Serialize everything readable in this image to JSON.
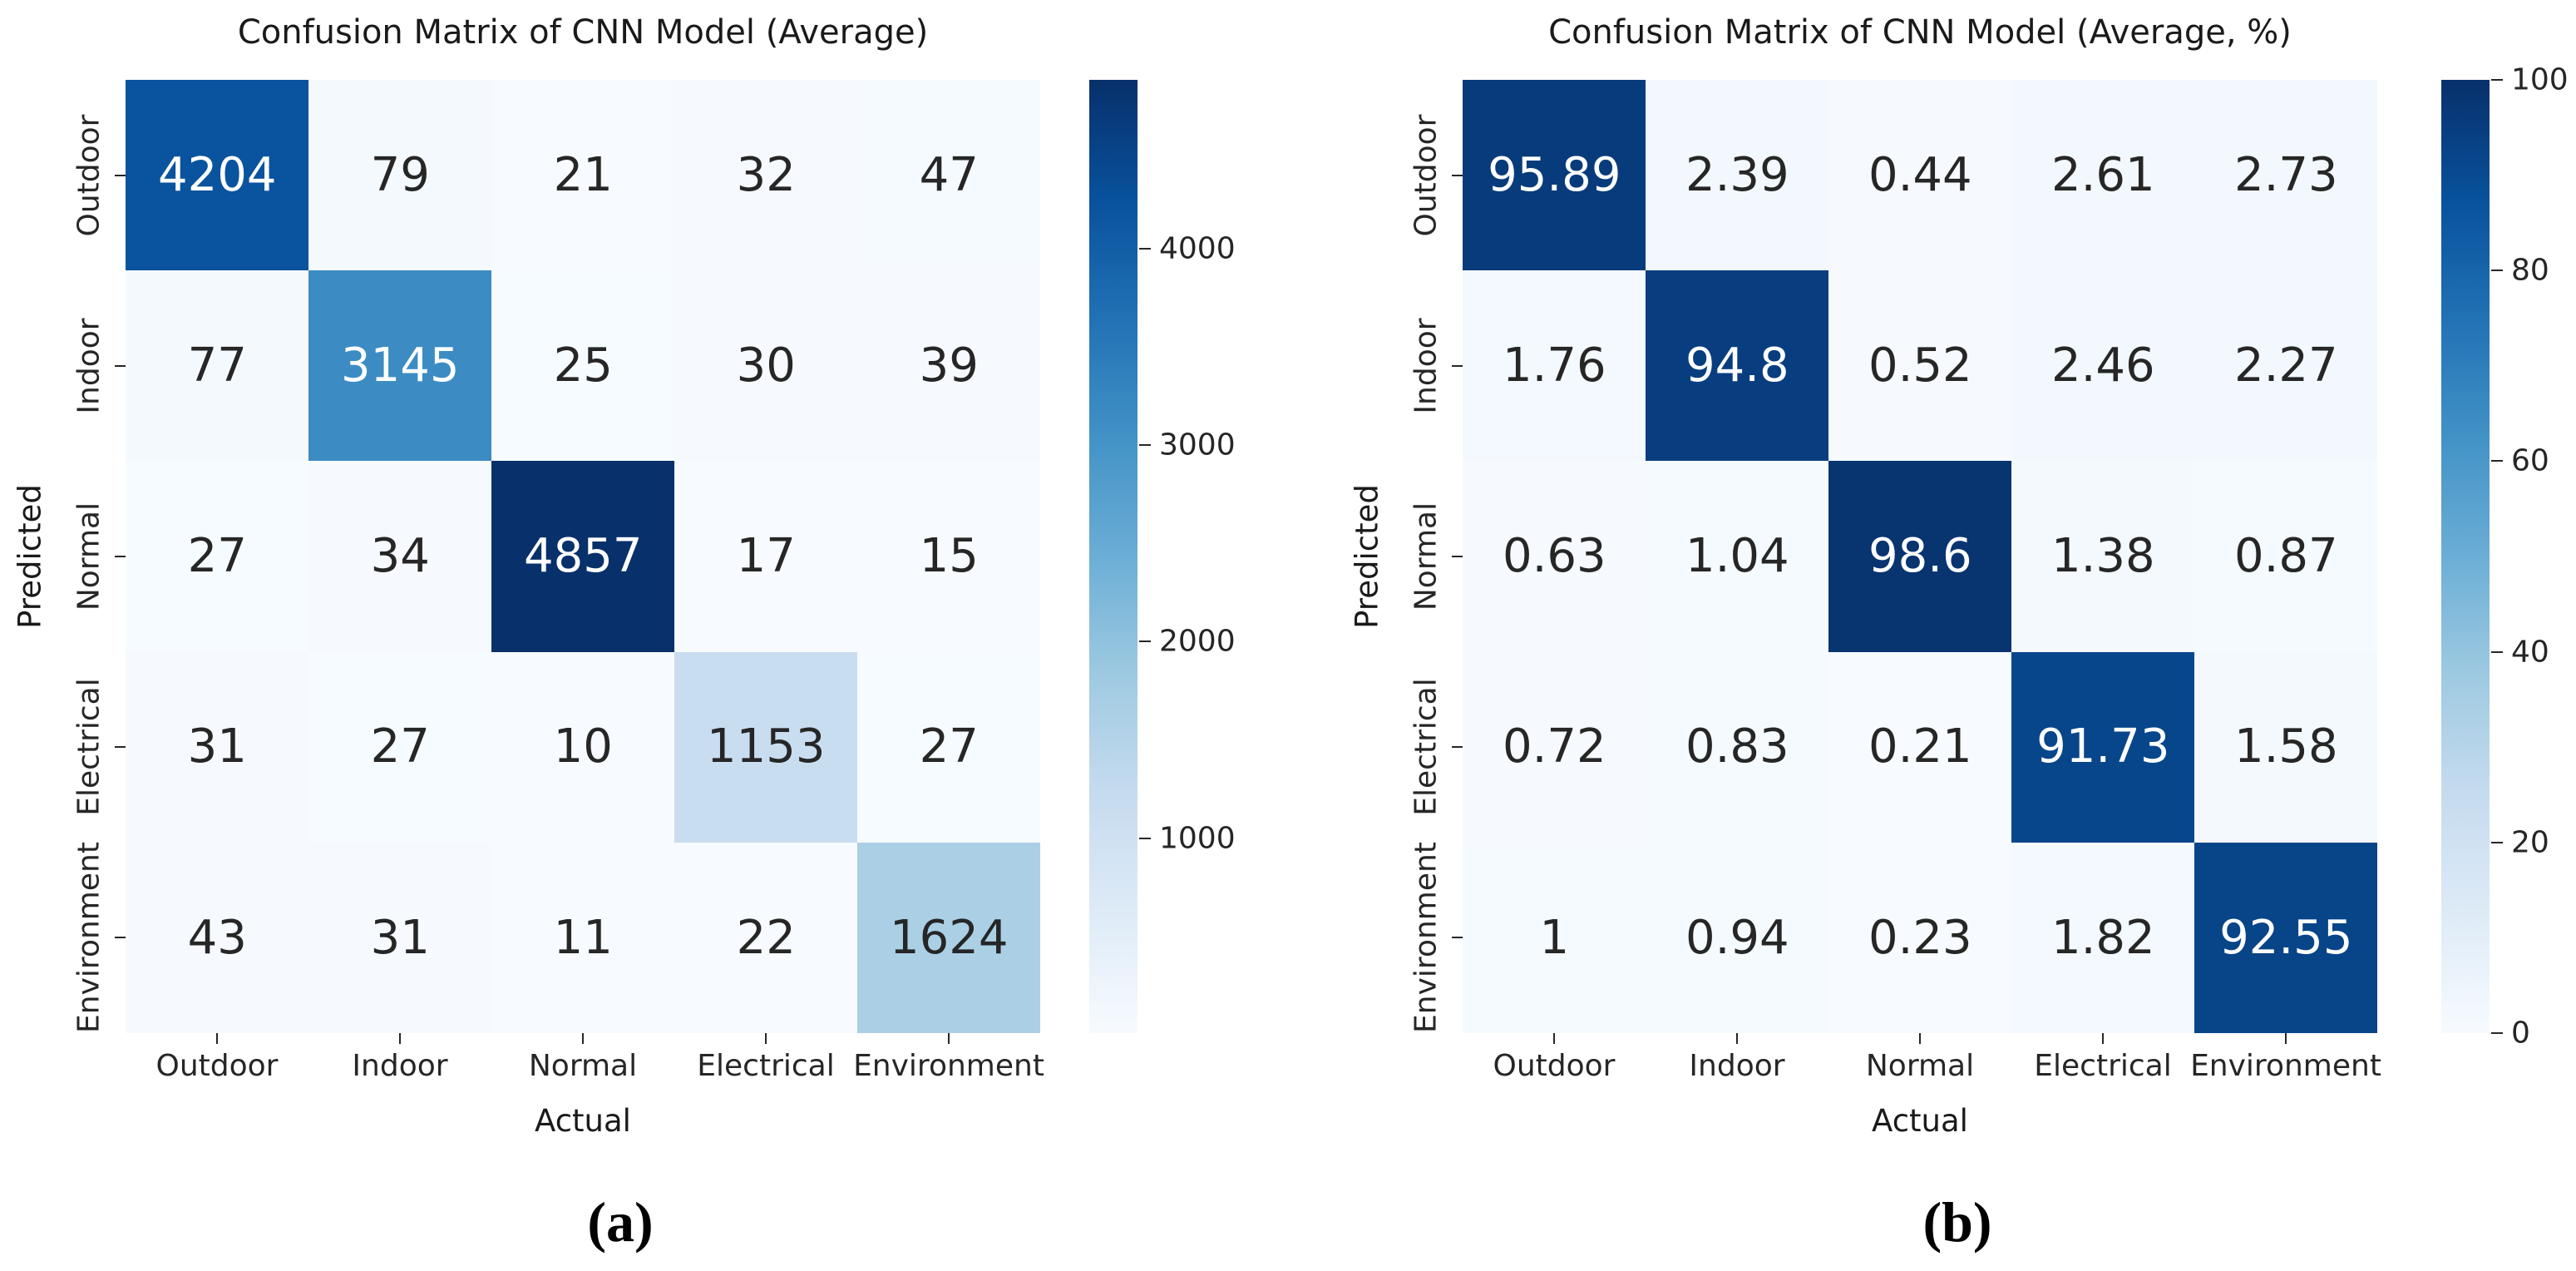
{
  "colormap_stops": [
    "#f7fbff",
    "#deebf7",
    "#c6dbef",
    "#9ecae1",
    "#6baed6",
    "#4292c6",
    "#2171b5",
    "#08519c",
    "#08306b"
  ],
  "annotation_colors": {
    "light_text": "#ffffff",
    "dark_text": "#262626"
  },
  "chart_data": [
    {
      "type": "heatmap",
      "title": "Confusion Matrix of CNN Model (Average)",
      "xlabel": "Actual",
      "ylabel": "Predicted",
      "caption": "(a)",
      "x_categories": [
        "Outdoor",
        "Indoor",
        "Normal",
        "Electrical",
        "Environment"
      ],
      "y_categories": [
        "Outdoor",
        "Indoor",
        "Normal",
        "Electrical",
        "Environment"
      ],
      "values": [
        [
          4204,
          79,
          21,
          32,
          47
        ],
        [
          77,
          3145,
          25,
          30,
          39
        ],
        [
          27,
          34,
          4857,
          17,
          15
        ],
        [
          31,
          27,
          10,
          1153,
          27
        ],
        [
          43,
          31,
          11,
          22,
          1624
        ]
      ],
      "colormap": "Blues",
      "vmin": 10,
      "vmax": 4857,
      "colorbar_ticks": [
        1000,
        2000,
        3000,
        4000
      ],
      "grid": false,
      "legend_position": "right-colorbar"
    },
    {
      "type": "heatmap",
      "title": "Confusion Matrix of CNN Model (Average, %)",
      "xlabel": "Actual",
      "ylabel": "Predicted",
      "caption": "(b)",
      "x_categories": [
        "Outdoor",
        "Indoor",
        "Normal",
        "Electrical",
        "Environment"
      ],
      "y_categories": [
        "Outdoor",
        "Indoor",
        "Normal",
        "Electrical",
        "Environment"
      ],
      "values": [
        [
          95.89,
          2.39,
          0.44,
          2.61,
          2.73
        ],
        [
          1.76,
          94.8,
          0.52,
          2.46,
          2.27
        ],
        [
          0.63,
          1.04,
          98.6,
          1.38,
          0.87
        ],
        [
          0.72,
          0.83,
          0.21,
          91.73,
          1.58
        ],
        [
          1,
          0.94,
          0.23,
          1.82,
          92.55
        ]
      ],
      "colormap": "Blues",
      "vmin": 0,
      "vmax": 100,
      "colorbar_ticks": [
        0,
        20,
        40,
        60,
        80,
        100
      ],
      "grid": false,
      "legend_position": "right-colorbar"
    }
  ]
}
